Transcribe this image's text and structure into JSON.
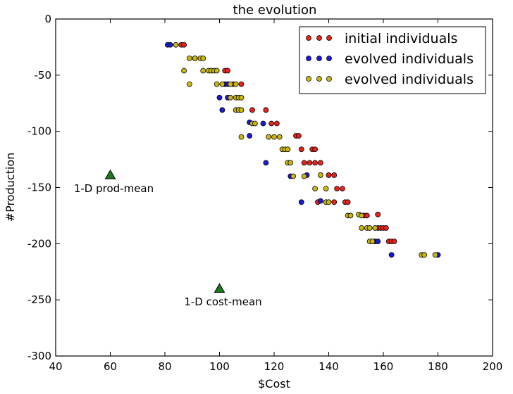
{
  "chart_data": {
    "type": "scatter",
    "title": "the evolution",
    "xlabel": "$Cost",
    "ylabel": "#Production",
    "xlim": [
      40,
      200
    ],
    "ylim": [
      -300,
      0
    ],
    "xticks": [
      40,
      60,
      80,
      100,
      120,
      140,
      160,
      180,
      200
    ],
    "yticks": [
      0,
      -50,
      -100,
      -150,
      -200,
      -250,
      -300
    ],
    "grid": false,
    "legend_position": "top-right",
    "series": [
      {
        "name": "initial individuals",
        "color": "#e8221c",
        "marker": "circle",
        "points": [
          [
            86,
            -23
          ],
          [
            87,
            -23
          ],
          [
            102,
            -46
          ],
          [
            103,
            -46
          ],
          [
            105,
            -58
          ],
          [
            108,
            -58
          ],
          [
            112,
            -81
          ],
          [
            117,
            -81
          ],
          [
            119,
            -93
          ],
          [
            121,
            -93
          ],
          [
            128,
            -104
          ],
          [
            129,
            -104
          ],
          [
            130,
            -116
          ],
          [
            134,
            -116
          ],
          [
            135,
            -116
          ],
          [
            131,
            -128
          ],
          [
            133,
            -128
          ],
          [
            135,
            -128
          ],
          [
            137,
            -128
          ],
          [
            140,
            -139
          ],
          [
            142,
            -139
          ],
          [
            143,
            -151
          ],
          [
            145,
            -151
          ],
          [
            136,
            -163
          ],
          [
            142,
            -163
          ],
          [
            146,
            -163
          ],
          [
            147,
            -163
          ],
          [
            153,
            -175
          ],
          [
            154,
            -175
          ],
          [
            158,
            -174
          ],
          [
            158,
            -186
          ],
          [
            159,
            -186
          ],
          [
            160,
            -186
          ],
          [
            161,
            -186
          ],
          [
            162,
            -198
          ],
          [
            163,
            -198
          ],
          [
            164,
            -198
          ]
        ]
      },
      {
        "name": "evolved individuals",
        "color": "#1a1adb",
        "marker": "circle",
        "points": [
          [
            81,
            -23
          ],
          [
            82,
            -23
          ],
          [
            91,
            -35
          ],
          [
            102,
            -58
          ],
          [
            103,
            -58
          ],
          [
            100,
            -70
          ],
          [
            103,
            -70
          ],
          [
            101,
            -81
          ],
          [
            111,
            -92
          ],
          [
            116,
            -93
          ],
          [
            111,
            -104
          ],
          [
            117,
            -128
          ],
          [
            126,
            -140
          ],
          [
            132,
            -139
          ],
          [
            130,
            -163
          ],
          [
            137,
            -162
          ],
          [
            157,
            -198
          ],
          [
            158,
            -198
          ],
          [
            163,
            -210
          ],
          [
            180,
            -210
          ]
        ]
      },
      {
        "name": "evolved individuals",
        "color": "#c9b813",
        "marker": "circle",
        "points": [
          [
            84,
            -23
          ],
          [
            89,
            -35
          ],
          [
            91,
            -35
          ],
          [
            93,
            -35
          ],
          [
            94,
            -35
          ],
          [
            87,
            -46
          ],
          [
            94,
            -46
          ],
          [
            96,
            -46
          ],
          [
            97,
            -46
          ],
          [
            98,
            -46
          ],
          [
            99,
            -46
          ],
          [
            89,
            -58
          ],
          [
            99,
            -58
          ],
          [
            101,
            -58
          ],
          [
            104,
            -58
          ],
          [
            106,
            -58
          ],
          [
            104,
            -70
          ],
          [
            106,
            -70
          ],
          [
            107,
            -70
          ],
          [
            108,
            -70
          ],
          [
            106,
            -81
          ],
          [
            107,
            -81
          ],
          [
            108,
            -81
          ],
          [
            112,
            -93
          ],
          [
            113,
            -93
          ],
          [
            108,
            -105
          ],
          [
            118,
            -105
          ],
          [
            120,
            -105
          ],
          [
            122,
            -105
          ],
          [
            123,
            -116
          ],
          [
            124,
            -116
          ],
          [
            125,
            -116
          ],
          [
            125,
            -128
          ],
          [
            126,
            -128
          ],
          [
            127,
            -140
          ],
          [
            131,
            -140
          ],
          [
            137,
            -139
          ],
          [
            135,
            -151
          ],
          [
            139,
            -151
          ],
          [
            139,
            -163
          ],
          [
            140,
            -163
          ],
          [
            147,
            -175
          ],
          [
            148,
            -175
          ],
          [
            151,
            -174
          ],
          [
            152,
            -175
          ],
          [
            152,
            -186
          ],
          [
            154,
            -186
          ],
          [
            155,
            -186
          ],
          [
            157,
            -186
          ],
          [
            155,
            -198
          ],
          [
            156,
            -198
          ],
          [
            174,
            -210
          ],
          [
            175,
            -210
          ],
          [
            179,
            -210
          ]
        ]
      },
      {
        "name": "",
        "color": "#1b7a1b",
        "marker": "triangle",
        "points": [
          [
            60,
            -139
          ],
          [
            100,
            -240
          ]
        ]
      }
    ],
    "annotations": [
      {
        "text": "1-D prod-mean",
        "x": 60,
        "y": -139
      },
      {
        "text": "1-D cost-mean",
        "x": 100,
        "y": -240
      }
    ]
  }
}
